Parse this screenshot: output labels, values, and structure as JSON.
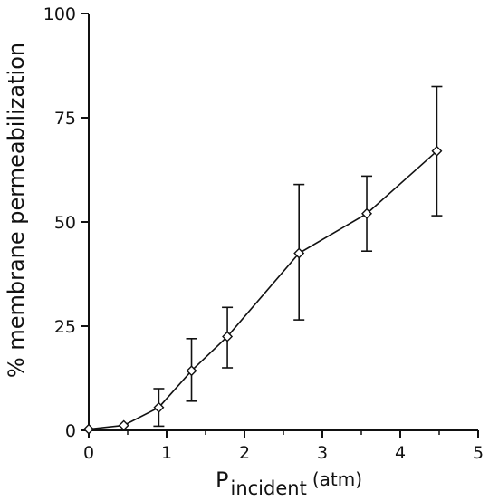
{
  "chart_data": {
    "type": "line",
    "xlabel": {
      "main": "P",
      "subscript": "incident",
      "unit": "(atm)"
    },
    "ylabel": "% membrane permeabilization",
    "xlim": [
      0,
      5
    ],
    "ylim": [
      0,
      100
    ],
    "xticks": [
      "0",
      "1",
      "2",
      "3",
      "4",
      "5"
    ],
    "yticks": [
      "0",
      "25",
      "50",
      "75",
      "100"
    ],
    "grid": false,
    "marker": "diamond",
    "series": [
      {
        "x": [
          0.0,
          0.45,
          0.9,
          1.32,
          1.78,
          2.7,
          3.57,
          4.47
        ],
        "y": [
          0.3,
          1.2,
          5.5,
          14.3,
          22.5,
          42.5,
          52.0,
          67.0
        ],
        "err_low": [
          0.0,
          0.0,
          4.5,
          7.3,
          7.5,
          16.0,
          9.0,
          15.5
        ],
        "err_high": [
          0.0,
          0.0,
          4.5,
          7.7,
          7.0,
          16.5,
          9.0,
          15.5
        ]
      }
    ]
  }
}
